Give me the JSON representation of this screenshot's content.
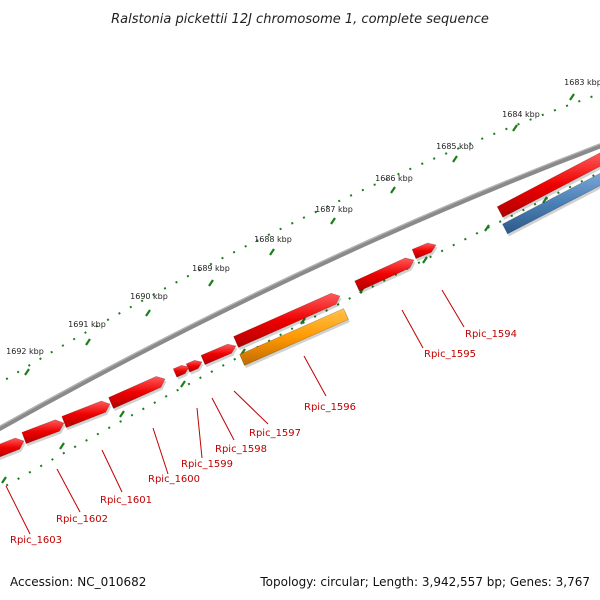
{
  "title": "Ralstonia pickettii 12J chromosome 1, complete sequence",
  "footer": {
    "accession": "Accession: NC_010682",
    "topology": "Topology: circular; Length: 3,942,557 bp; Genes: 3,767"
  },
  "colors": {
    "backbone": "#808080",
    "gene_forward": "#ff0000",
    "gene_highlight": "#ff9900",
    "gene_reverse": "#4a7fb5",
    "ticks": "#1a7f1a",
    "label": "#c00000"
  },
  "kbp_ticks": [
    "1683 kbp",
    "1684 kbp",
    "1685 kbp",
    "1686 kbp",
    "1687 kbp",
    "1688 kbp",
    "1689 kbp",
    "1690 kbp",
    "1691 kbp",
    "1692 kbp"
  ],
  "genes": [
    {
      "label": "Rpic_1594",
      "color": "red"
    },
    {
      "label": "Rpic_1595",
      "color": "red"
    },
    {
      "label": "Rpic_1596",
      "color": "orange"
    },
    {
      "label": "Rpic_1597",
      "color": "red"
    },
    {
      "label": "Rpic_1598",
      "color": "red"
    },
    {
      "label": "Rpic_1599",
      "color": "red"
    },
    {
      "label": "Rpic_1600",
      "color": "red"
    },
    {
      "label": "Rpic_1601",
      "color": "red"
    },
    {
      "label": "Rpic_1602",
      "color": "red"
    },
    {
      "label": "Rpic_1603",
      "color": "red"
    }
  ]
}
